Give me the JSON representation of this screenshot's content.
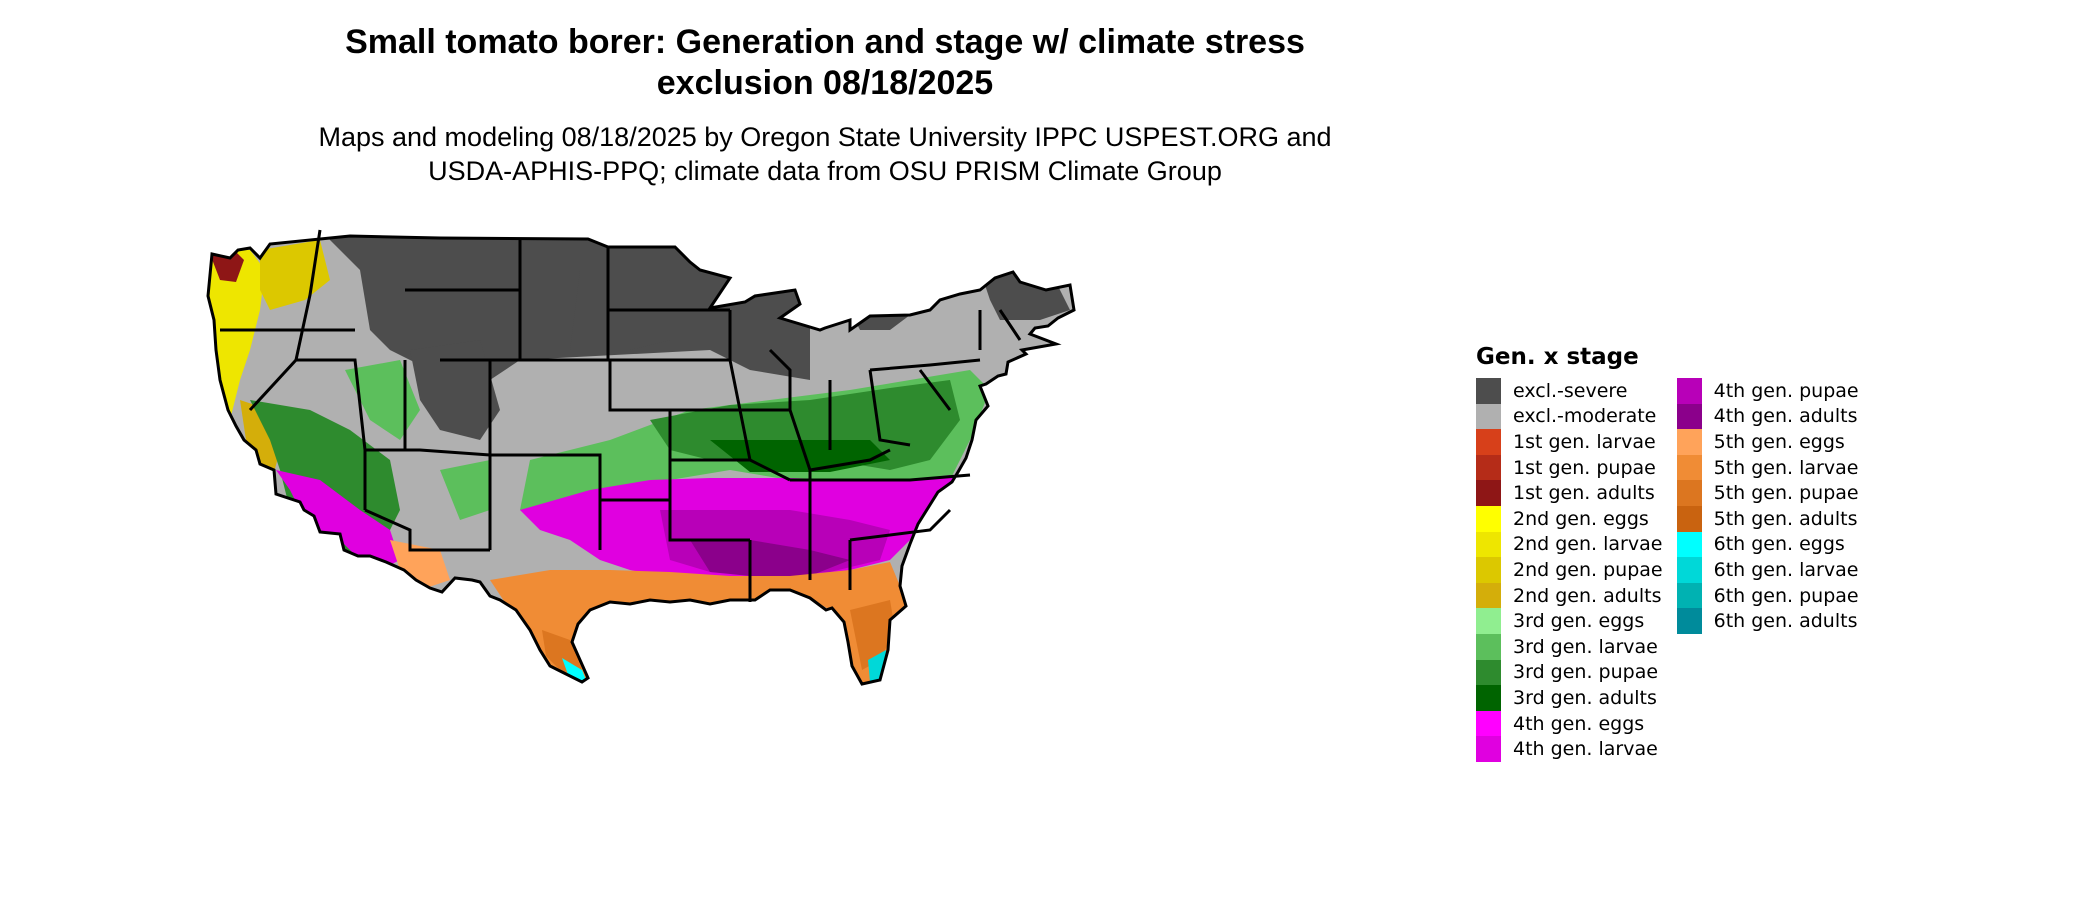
{
  "title": {
    "line1": "Small tomato borer: Generation and stage w/ climate stress",
    "line2": "exclusion 08/18/2025"
  },
  "subtitle": {
    "line1": "Maps and modeling 08/18/2025 by Oregon State University IPPC USPEST.ORG and",
    "line2": "USDA-APHIS-PPQ; climate data from OSU PRISM Climate Group"
  },
  "legend": {
    "title": "Gen. x stage",
    "items": [
      {
        "label": "excl.-severe",
        "color": "#4d4d4d"
      },
      {
        "label": "excl.-moderate",
        "color": "#b0b0b0"
      },
      {
        "label": "1st gen. larvae",
        "color": "#d7401a"
      },
      {
        "label": "1st gen. pupae",
        "color": "#b52c18"
      },
      {
        "label": "1st gen. adults",
        "color": "#8e1616"
      },
      {
        "label": "2nd gen. eggs",
        "color": "#ffff00"
      },
      {
        "label": "2nd gen. larvae",
        "color": "#eee600"
      },
      {
        "label": "2nd gen. pupae",
        "color": "#dcc800"
      },
      {
        "label": "2nd gen. adults",
        "color": "#d4ae0a"
      },
      {
        "label": "3rd gen. eggs",
        "color": "#90ee90"
      },
      {
        "label": "3rd gen. larvae",
        "color": "#5cbf5c"
      },
      {
        "label": "3rd gen. pupae",
        "color": "#2e8b2e"
      },
      {
        "label": "3rd gen. adults",
        "color": "#006400"
      },
      {
        "label": "4th gen. eggs",
        "color": "#ff00ff"
      },
      {
        "label": "4th gen. larvae",
        "color": "#e000e0"
      },
      {
        "label": "4th gen. pupae",
        "color": "#b800b8"
      },
      {
        "label": "4th gen. adults",
        "color": "#8b008b"
      },
      {
        "label": "5th gen. eggs",
        "color": "#ffa35a"
      },
      {
        "label": "5th gen. larvae",
        "color": "#f08c35"
      },
      {
        "label": "5th gen. pupae",
        "color": "#dc7620"
      },
      {
        "label": "5th gen. adults",
        "color": "#c96310"
      },
      {
        "label": "6th gen. eggs",
        "color": "#00ffff"
      },
      {
        "label": "6th gen. larvae",
        "color": "#00d8d8"
      },
      {
        "label": "6th gen. pupae",
        "color": "#00b2b2"
      },
      {
        "label": "6th gen. adults",
        "color": "#008b9b"
      }
    ]
  }
}
